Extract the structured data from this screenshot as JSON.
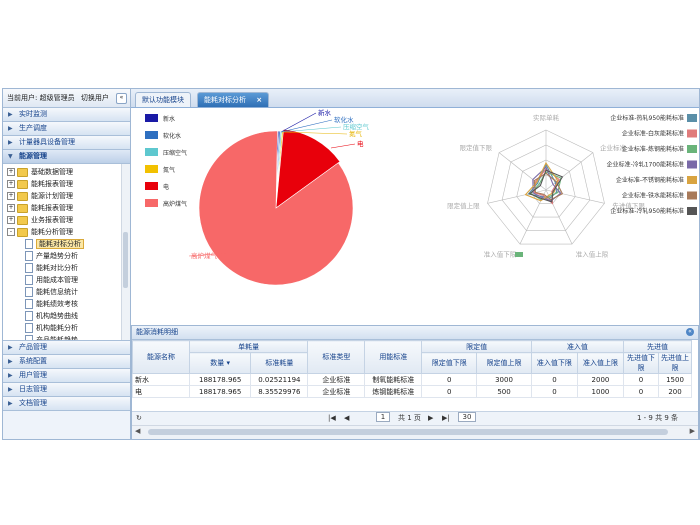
{
  "user_bar": {
    "text": "当前用户: 超级管理员",
    "switch_label": "切换用户",
    "toggle": "«"
  },
  "sidebar": {
    "top_sections": [
      "实时监测",
      "生产调度",
      "计量器具设备管理"
    ],
    "open_section": "能源管理",
    "tree": [
      {
        "label": "基础数据管理",
        "level": 0,
        "type": "folder",
        "pm": "+"
      },
      {
        "label": "能耗报表管理",
        "level": 0,
        "type": "folder",
        "pm": "+"
      },
      {
        "label": "能源计划管理",
        "level": 0,
        "type": "folder",
        "pm": "+"
      },
      {
        "label": "能耗报表管理",
        "level": 0,
        "type": "folder",
        "pm": "+"
      },
      {
        "label": "业务报表管理",
        "level": 0,
        "type": "folder",
        "pm": "+"
      },
      {
        "label": "能耗分析管理",
        "level": 0,
        "type": "folder",
        "pm": "-"
      },
      {
        "label": "能耗对标分析",
        "level": 1,
        "type": "doc",
        "selected": true
      },
      {
        "label": "产量趋势分析",
        "level": 1,
        "type": "doc"
      },
      {
        "label": "能耗对比分析",
        "level": 1,
        "type": "doc"
      },
      {
        "label": "用能成本管理",
        "level": 1,
        "type": "doc"
      },
      {
        "label": "能耗信息统计",
        "level": 1,
        "type": "doc"
      },
      {
        "label": "能耗绩效考核",
        "level": 1,
        "type": "doc"
      },
      {
        "label": "机构趋势曲线",
        "level": 1,
        "type": "doc"
      },
      {
        "label": "机构能耗分析",
        "level": 1,
        "type": "doc"
      },
      {
        "label": "产品能耗趋势",
        "level": 1,
        "type": "doc"
      }
    ],
    "bottom_sections": [
      "产品管理",
      "系统配置",
      "用户管理",
      "日志管理",
      "文档管理"
    ]
  },
  "tabs": [
    {
      "label": "默认功能模块"
    },
    {
      "label": "能耗对标分析",
      "close": "×"
    }
  ],
  "pie": {
    "legend": [
      {
        "label": "新水",
        "color": "#1a1aa6"
      },
      {
        "label": "软化水",
        "color": "#2e6fc0"
      },
      {
        "label": "压缩空气",
        "color": "#5ec8cf"
      },
      {
        "label": "氮气",
        "color": "#f2c100"
      },
      {
        "label": "电",
        "color": "#e8000b"
      },
      {
        "label": "高炉煤气",
        "color": "#f76868"
      }
    ],
    "slices": [
      {
        "name": "新水",
        "value": 0.3,
        "color": "#1a1aa6"
      },
      {
        "name": "软化水",
        "value": 0.3,
        "color": "#2e6fc0"
      },
      {
        "name": "压缩空气",
        "value": 0.3,
        "color": "#5ec8cf"
      },
      {
        "name": "氮气",
        "value": 0.3,
        "color": "#f2c100"
      },
      {
        "name": "电",
        "value": 13.5,
        "color": "#e8000b"
      },
      {
        "name": "高炉煤气",
        "value": 85.3,
        "color": "#f76868"
      }
    ],
    "callouts": {
      "xinshui": "新水",
      "ruanhuashui": "软化水",
      "yasuo": "压缩空气",
      "danqi": "氮气",
      "dian": "电",
      "gaolu": "高炉煤气"
    }
  },
  "radar": {
    "axes": [
      "实际单耗",
      "企业标准",
      "先进值下限",
      "准入值上限",
      "准入值下限",
      "限定值上限",
      "限定值下限"
    ],
    "legend": [
      {
        "label": "企业标准-热轧950能耗标准",
        "color": "#5a8fa8"
      },
      {
        "label": "企业标准-白灰能耗标准",
        "color": "#e07b7b"
      },
      {
        "label": "企业标准-炼钢能耗标准",
        "color": "#6ab47a"
      },
      {
        "label": "企业标准-冷轧1700能耗标准",
        "color": "#7a6aa8"
      },
      {
        "label": "企业标准-不锈钢能耗标准",
        "color": "#d9a441"
      },
      {
        "label": "企业标准-铁水能耗标准",
        "color": "#a87a5a"
      },
      {
        "label": "企业标准-冷轧950能耗标准",
        "color": "#555555"
      }
    ]
  },
  "table_panel": {
    "title": "能源消耗明细",
    "collapse": "«",
    "headers": {
      "name": "能源名称",
      "unit_consumption": "单耗量",
      "qty": "数量",
      "std_consumption": "标准耗量",
      "std_type": "标准类型",
      "energy_std": "用能标准",
      "limit": "限定值",
      "limit_low": "限定值下限",
      "limit_high": "限定值上限",
      "access": "准入值",
      "access_low": "准入值下限",
      "access_high": "准入值上限",
      "advanced": "先进值",
      "adv_low": "先进值下限",
      "adv_high": "先进值上限"
    },
    "rows": [
      [
        "新水",
        "188178.965",
        "0.02521194",
        "企业标准",
        "制氧能耗标准",
        "0",
        "3000",
        "0",
        "2000",
        "0",
        "1500"
      ],
      [
        "电",
        "188178.965",
        "8.35529976",
        "企业标准",
        "炼钢能耗标准",
        "0",
        "500",
        "0",
        "1000",
        "0",
        "200"
      ]
    ],
    "pager": {
      "refresh": "↻",
      "first": "|◀",
      "prev": "◀",
      "page": "1",
      "of": "共 1 页",
      "next": "▶",
      "last": "▶|",
      "size": "30",
      "summary": "1 - 9   共 9 条"
    }
  }
}
